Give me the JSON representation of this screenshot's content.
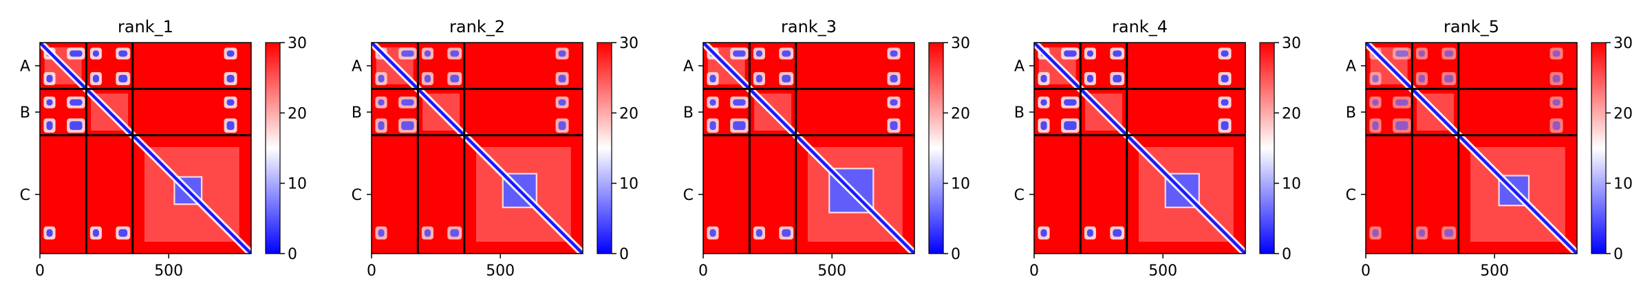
{
  "chart_data": {
    "type": "heatmap",
    "x_range": [
      0,
      820
    ],
    "y_range": [
      0,
      820
    ],
    "xticks": [
      0,
      500
    ],
    "ytick_labels": [
      "A",
      "B",
      "C"
    ],
    "chain_boundaries": [
      180,
      360
    ],
    "chain_labels": [
      "A",
      "B",
      "C"
    ],
    "colorbar": {
      "min": 0,
      "max": 30,
      "ticks": [
        0,
        10,
        20,
        30
      ],
      "colors": [
        "#0000ff",
        "#ffffff",
        "#ff0000"
      ]
    },
    "panels": [
      {
        "title": "rank_1",
        "offdiag_scale": 1.0,
        "center_size": 100
      },
      {
        "title": "rank_2",
        "offdiag_scale": 0.85,
        "center_size": 125
      },
      {
        "title": "rank_3",
        "offdiag_scale": 0.95,
        "center_size": 165
      },
      {
        "title": "rank_4",
        "offdiag_scale": 1.0,
        "center_size": 125
      },
      {
        "title": "rank_5",
        "offdiag_scale": 0.6,
        "center_size": 110
      }
    ],
    "pattern": {
      "near_diagonal_width": 12,
      "repeat_blocks": [
        {
          "x": [
            20,
            55
          ],
          "y": [
            25,
            60
          ]
        },
        {
          "x": [
            110,
            170
          ],
          "y": [
            25,
            60
          ]
        },
        {
          "x": [
            200,
            235
          ],
          "y": [
            25,
            60
          ]
        },
        {
          "x": [
            300,
            345
          ],
          "y": [
            25,
            60
          ]
        },
        {
          "x": [
            720,
            760
          ],
          "y": [
            25,
            60
          ]
        },
        {
          "x": [
            20,
            55
          ],
          "y": [
            120,
            160
          ]
        },
        {
          "x": [
            200,
            235
          ],
          "y": [
            120,
            160
          ]
        },
        {
          "x": [
            300,
            345
          ],
          "y": [
            120,
            160
          ]
        },
        {
          "x": [
            720,
            760
          ],
          "y": [
            120,
            160
          ]
        },
        {
          "x": [
            20,
            55
          ],
          "y": [
            720,
            760
          ]
        },
        {
          "x": [
            200,
            235
          ],
          "y": [
            720,
            760
          ]
        },
        {
          "x": [
            300,
            345
          ],
          "y": [
            720,
            760
          ]
        },
        {
          "x": [
            20,
            55
          ],
          "y": [
            215,
            250
          ]
        },
        {
          "x": [
            110,
            170
          ],
          "y": [
            215,
            250
          ]
        },
        {
          "x": [
            720,
            760
          ],
          "y": [
            215,
            250
          ]
        },
        {
          "x": [
            20,
            55
          ],
          "y": [
            300,
            345
          ]
        },
        {
          "x": [
            110,
            170
          ],
          "y": [
            300,
            345
          ]
        },
        {
          "x": [
            720,
            760
          ],
          "y": [
            300,
            345
          ]
        }
      ],
      "center_block_center": [
        575,
        575
      ]
    }
  }
}
